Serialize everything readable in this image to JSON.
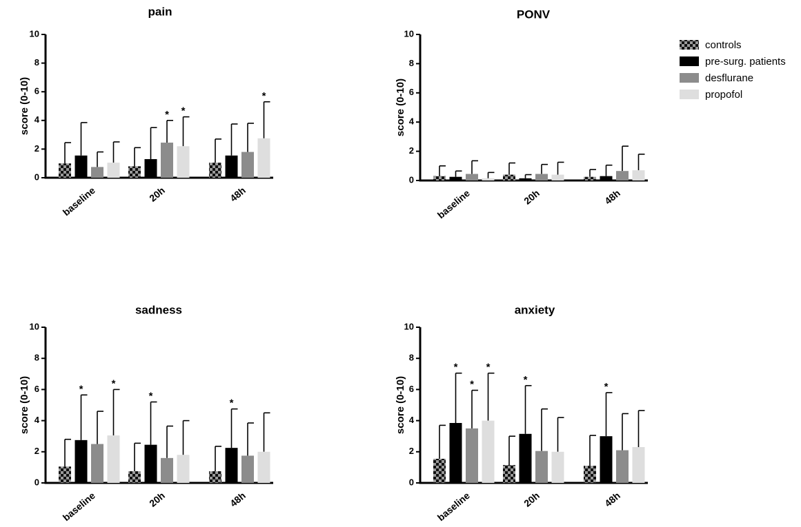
{
  "legend": {
    "items": [
      {
        "label": "controls",
        "color": "#8a8a8a",
        "pattern": "checker"
      },
      {
        "label": "pre-surg. patients",
        "color": "#000000",
        "pattern": "solid"
      },
      {
        "label": "desflurane",
        "color": "#8c8c8c",
        "pattern": "solid"
      },
      {
        "label": "propofol",
        "color": "#dedede",
        "pattern": "solid"
      }
    ]
  },
  "chart_data": [
    {
      "type": "bar",
      "title": "pain",
      "ylabel": "score (0-10)",
      "ylim": [
        0,
        10
      ],
      "yticks": [
        "0",
        "2",
        "4",
        "6",
        "8",
        "10"
      ],
      "categories": [
        "baseline",
        "20h",
        "48h"
      ],
      "series": [
        {
          "name": "controls",
          "values": [
            1.0,
            0.8,
            1.05
          ],
          "errors": [
            1.45,
            1.3,
            1.65
          ],
          "stars": [
            false,
            false,
            false
          ]
        },
        {
          "name": "pre-surg. patients",
          "values": [
            1.55,
            1.3,
            1.55
          ],
          "errors": [
            2.3,
            2.2,
            2.2
          ],
          "stars": [
            false,
            false,
            false
          ]
        },
        {
          "name": "desflurane",
          "values": [
            0.75,
            2.45,
            1.8
          ],
          "errors": [
            1.05,
            1.55,
            2.0
          ],
          "stars": [
            false,
            true,
            false
          ]
        },
        {
          "name": "propofol",
          "values": [
            1.05,
            2.2,
            2.75
          ],
          "errors": [
            1.45,
            2.05,
            2.55
          ],
          "stars": [
            false,
            true,
            true
          ]
        }
      ]
    },
    {
      "type": "bar",
      "title": "PONV",
      "ylabel": "score (0-10)",
      "ylim": [
        0,
        10
      ],
      "yticks": [
        "0",
        "2",
        "4",
        "6",
        "8",
        "10"
      ],
      "categories": [
        "baseline",
        "20h",
        "48h"
      ],
      "series": [
        {
          "name": "controls",
          "values": [
            0.3,
            0.4,
            0.25
          ],
          "errors": [
            0.7,
            0.8,
            0.5
          ],
          "stars": [
            false,
            false,
            false
          ]
        },
        {
          "name": "pre-surg. patients",
          "values": [
            0.25,
            0.15,
            0.3
          ],
          "errors": [
            0.4,
            0.25,
            0.75
          ],
          "stars": [
            false,
            false,
            false
          ]
        },
        {
          "name": "desflurane",
          "values": [
            0.45,
            0.45,
            0.65
          ],
          "errors": [
            0.9,
            0.65,
            1.7
          ],
          "stars": [
            false,
            false,
            false
          ]
        },
        {
          "name": "propofol",
          "values": [
            0.15,
            0.4,
            0.7
          ],
          "errors": [
            0.4,
            0.85,
            1.1
          ],
          "stars": [
            false,
            false,
            false
          ]
        }
      ]
    },
    {
      "type": "bar",
      "title": "sadness",
      "ylabel": "score (0-10)",
      "ylim": [
        0,
        10
      ],
      "yticks": [
        "0",
        "2",
        "4",
        "6",
        "8",
        "10"
      ],
      "categories": [
        "baseline",
        "20h",
        "48h"
      ],
      "series": [
        {
          "name": "controls",
          "values": [
            1.05,
            0.75,
            0.75
          ],
          "errors": [
            1.75,
            1.8,
            1.6
          ],
          "stars": [
            false,
            false,
            false
          ]
        },
        {
          "name": "pre-surg. patients",
          "values": [
            2.75,
            2.45,
            2.25
          ],
          "errors": [
            2.9,
            2.75,
            2.5
          ],
          "stars": [
            true,
            true,
            true
          ]
        },
        {
          "name": "desflurane",
          "values": [
            2.5,
            1.6,
            1.75
          ],
          "errors": [
            2.1,
            2.05,
            2.1
          ],
          "stars": [
            false,
            false,
            false
          ]
        },
        {
          "name": "propofol",
          "values": [
            3.05,
            1.8,
            2.0
          ],
          "errors": [
            2.95,
            2.2,
            2.5
          ],
          "stars": [
            true,
            false,
            false
          ]
        }
      ]
    },
    {
      "type": "bar",
      "title": "anxiety",
      "ylabel": "score (0-10)",
      "ylim": [
        0,
        10
      ],
      "yticks": [
        "0",
        "2",
        "4",
        "6",
        "8",
        "10"
      ],
      "categories": [
        "baseline",
        "20h",
        "48h"
      ],
      "series": [
        {
          "name": "controls",
          "values": [
            1.55,
            1.15,
            1.1
          ],
          "errors": [
            2.15,
            1.85,
            1.95
          ],
          "stars": [
            false,
            false,
            false
          ]
        },
        {
          "name": "pre-surg. patients",
          "values": [
            3.85,
            3.15,
            3.0
          ],
          "errors": [
            3.2,
            3.1,
            2.8
          ],
          "stars": [
            true,
            true,
            true
          ]
        },
        {
          "name": "desflurane",
          "values": [
            3.5,
            2.05,
            2.1
          ],
          "errors": [
            2.45,
            2.7,
            2.35
          ],
          "stars": [
            true,
            false,
            false
          ]
        },
        {
          "name": "propofol",
          "values": [
            4.0,
            2.0,
            2.3
          ],
          "errors": [
            3.05,
            2.2,
            2.35
          ],
          "stars": [
            true,
            false,
            false
          ]
        }
      ]
    }
  ]
}
